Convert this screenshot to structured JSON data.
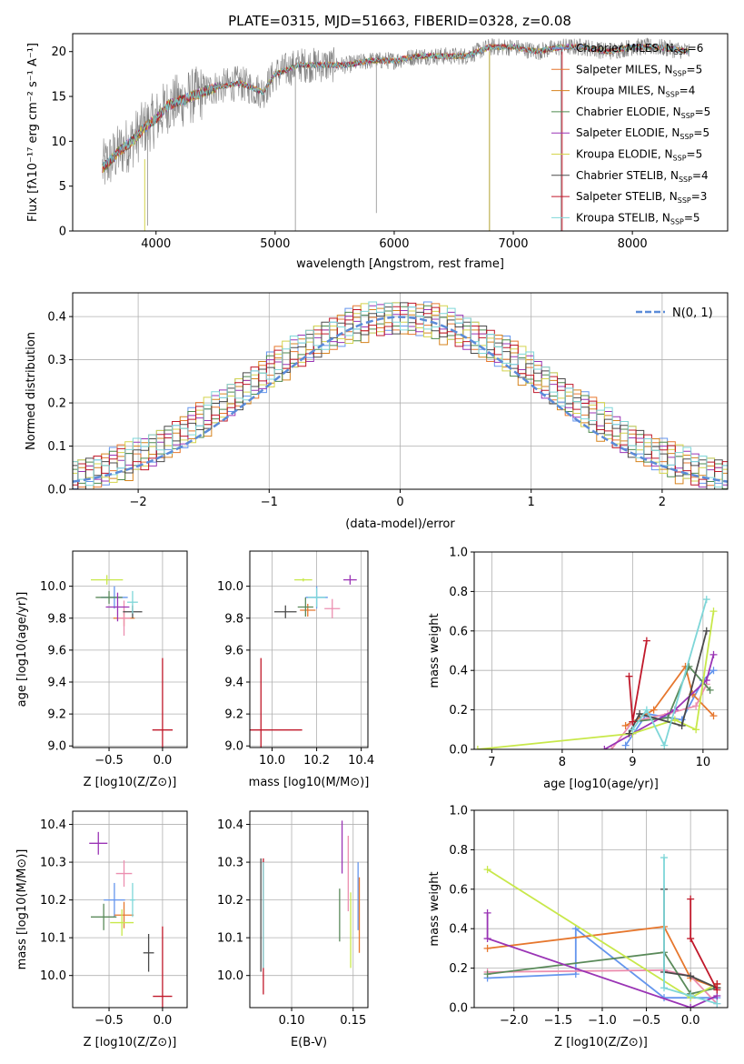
{
  "colors": {
    "series": [
      "#6495ed",
      "#e6772e",
      "#d6831d",
      "#4e8a4e",
      "#9a34b5",
      "#d4d44c",
      "#4a4a4a",
      "#c0182a",
      "#7ed6d8"
    ],
    "spec": [
      "#6495ed",
      "#e6772e",
      "#d6831d",
      "#4e8a4e",
      "#9a34b5",
      "#d4d44c",
      "#4a4a4a",
      "#c0182a",
      "#7ed6d8"
    ],
    "pdf": [
      "#6495ed",
      "#e6772e",
      "#d6831d",
      "#4e8a4e",
      "#9a34b5",
      "#d4d44c",
      "#4a4a4a",
      "#c0182a",
      "#7ed6d8"
    ],
    "pts": [
      "#6495ed",
      "#e6772e",
      "#ec8fb0",
      "#5a8a5a",
      "#9a34b5",
      "#c8e84a",
      "#4a4a4a",
      "#c0182a",
      "#7ed6d8"
    ],
    "normal": "#5b8bd8",
    "grid": "#b0b0b0"
  },
  "chart_data": [
    {
      "type": "line",
      "title": "PLATE=0315, MJD=51663, FIBERID=0328, z=0.08",
      "xlabel": "wavelength [Angstrom, rest frame]",
      "ylabel": "Flux [fλ10⁻¹⁷ erg cm⁻² s⁻¹ A⁻¹]",
      "xlim": [
        3300,
        8800
      ],
      "ylim": [
        0,
        22
      ],
      "xticks": [
        "4000",
        "5000",
        "6000",
        "7000",
        "8000"
      ],
      "yticks": [
        "0",
        "5",
        "10",
        "15",
        "20"
      ],
      "legend": "top-right",
      "series_names": [
        "Chabrier MILES, N_SSP=6",
        "Salpeter MILES, N_SSP=5",
        "Kroupa MILES, N_SSP=4",
        "Chabrier ELODIE, N_SSP=5",
        "Salpeter ELODIE, N_SSP=5",
        "Kroupa ELODIE, N_SSP=5",
        "Chabrier STELIB, N_SSP=4",
        "Salpeter STELIB, N_SSP=3",
        "Kroupa STELIB, N_SSP=5"
      ],
      "continuum": [
        [
          3550,
          7
        ],
        [
          3700,
          9
        ],
        [
          3800,
          10
        ],
        [
          3900,
          11.5
        ],
        [
          4000,
          12.5
        ],
        [
          4100,
          14
        ],
        [
          4300,
          15
        ],
        [
          4500,
          16
        ],
        [
          4700,
          16.5
        ],
        [
          4900,
          15.5
        ],
        [
          5000,
          17.5
        ],
        [
          5200,
          18.5
        ],
        [
          5400,
          18.5
        ],
        [
          5600,
          18.5
        ],
        [
          5800,
          19
        ],
        [
          6000,
          19
        ],
        [
          6200,
          19.5
        ],
        [
          6400,
          19.5
        ],
        [
          6600,
          19.5
        ],
        [
          6800,
          20.5
        ],
        [
          7000,
          20.5
        ],
        [
          7200,
          20
        ],
        [
          7400,
          20.5
        ],
        [
          7600,
          20.5
        ],
        [
          7800,
          20
        ],
        [
          8000,
          20.5
        ],
        [
          8200,
          20.5
        ],
        [
          8500,
          20
        ]
      ]
    },
    {
      "type": "bar",
      "xlabel": "(data-model)/error",
      "ylabel": "Normed distribution",
      "xlim": [
        -2.5,
        2.5
      ],
      "ylim": [
        0,
        0.455
      ],
      "xticks": [
        "−2",
        "−1",
        "0",
        "1",
        "2"
      ],
      "yticks": [
        "0.0",
        "0.1",
        "0.2",
        "0.3",
        "0.4"
      ],
      "legend_label": "N(0, 1)",
      "bin_width": 0.1,
      "hist_base": [
        0.024,
        0.028,
        0.032,
        0.036,
        0.041,
        0.046,
        0.052,
        0.058,
        0.065,
        0.073,
        0.081,
        0.09,
        0.1,
        0.11,
        0.121,
        0.132,
        0.144,
        0.156,
        0.168,
        0.181,
        0.194,
        0.207,
        0.22,
        0.234,
        0.247,
        0.26,
        0.273,
        0.286,
        0.298,
        0.31,
        0.321,
        0.332,
        0.342,
        0.351,
        0.36,
        0.367,
        0.374,
        0.38,
        0.385,
        0.389,
        0.392,
        0.395,
        0.396,
        0.396,
        0.395,
        0.392,
        0.389,
        0.385,
        0.38,
        0.374,
        0.367,
        0.36,
        0.351,
        0.342,
        0.332,
        0.321,
        0.31,
        0.298,
        0.286,
        0.273,
        0.26,
        0.247,
        0.234,
        0.22,
        0.207,
        0.194,
        0.181,
        0.168,
        0.156,
        0.144,
        0.132,
        0.121,
        0.11,
        0.1,
        0.09,
        0.081,
        0.073,
        0.065,
        0.058,
        0.052,
        0.046,
        0.041,
        0.036,
        0.032,
        0.028,
        0.024
      ],
      "noise": [
        [
          0.02,
          -0.03,
          0.04,
          -0.02,
          0.03,
          -0.04,
          0.05,
          -0.01,
          0.02,
          -0.03
        ],
        [
          -0.02,
          0.04,
          -0.03,
          0.02,
          -0.04,
          0.03,
          -0.01,
          0.05,
          -0.02,
          0.01
        ],
        [
          0.03,
          -0.01,
          0.02,
          -0.04,
          0.01,
          0.04,
          -0.03,
          0.02,
          -0.05,
          0.03
        ],
        [
          -0.01,
          0.02,
          -0.02,
          0.03,
          -0.03,
          0.01,
          0.04,
          -0.04,
          0.02,
          -0.02
        ],
        [
          0.04,
          -0.04,
          0.01,
          0.02,
          -0.02,
          -0.03,
          0.03,
          0.01,
          -0.01,
          0.04
        ],
        [
          -0.03,
          0.01,
          0.04,
          -0.01,
          0.02,
          -0.02,
          -0.04,
          0.03,
          0.05,
          -0.03
        ],
        [
          0.01,
          0.03,
          -0.04,
          0.04,
          -0.01,
          0.02,
          0.01,
          -0.02,
          -0.03,
          0.02
        ],
        [
          -0.04,
          -0.02,
          0.03,
          0.01,
          0.04,
          -0.01,
          0.02,
          0.04,
          -0.02,
          -0.01
        ],
        [
          0.02,
          0.04,
          -0.01,
          -0.03,
          0.03,
          0.01,
          -0.02,
          -0.01,
          0.03,
          0.05
        ]
      ]
    },
    {
      "type": "scatter",
      "xlabel": "Z [log10(Z/Z⊙)]",
      "ylabel": "age [log10(age/yr)]",
      "xlim": [
        -0.84,
        0.23
      ],
      "ylim": [
        8.99,
        10.22
      ],
      "xticks": [
        "−0.5",
        "0.0"
      ],
      "yticks": [
        "9.0",
        "9.2",
        "9.4",
        "9.6",
        "9.8",
        "10.0"
      ],
      "points": [
        [
          -0.45,
          9.93,
          0.25,
          0.14
        ],
        [
          -0.36,
          9.8,
          0.2,
          0.1
        ],
        [
          -0.36,
          9.8,
          0.12,
          0.22
        ],
        [
          -0.5,
          9.93,
          0.25,
          0.08
        ],
        [
          -0.42,
          9.87,
          0.22,
          0.18
        ],
        [
          -0.52,
          10.04,
          0.3,
          0.06
        ],
        [
          -0.28,
          9.84,
          0.18,
          0.08
        ],
        [
          0.0,
          9.1,
          0.19,
          0.9
        ],
        [
          -0.28,
          9.9,
          0.1,
          0.14
        ]
      ]
    },
    {
      "type": "scatter",
      "xlabel": "mass [log10(M/M⊙)]",
      "ylabel": "",
      "xlim": [
        9.9,
        10.43
      ],
      "ylim": [
        8.99,
        10.22
      ],
      "xticks": [
        "10.0",
        "10.2",
        "10.4"
      ],
      "yticks": [
        "9.0",
        "9.2",
        "9.4",
        "9.6",
        "9.8",
        "10.0"
      ],
      "points": [
        [
          10.2,
          9.93,
          0.1,
          0.14
        ],
        [
          10.16,
          9.85,
          0.07,
          0.08
        ],
        [
          10.27,
          9.86,
          0.07,
          0.12
        ],
        [
          10.15,
          9.87,
          0.07,
          0.12
        ],
        [
          10.35,
          10.04,
          0.06,
          0.06
        ],
        [
          10.14,
          10.04,
          0.08,
          0.02
        ],
        [
          10.06,
          9.84,
          0.1,
          0.08
        ],
        [
          9.95,
          9.1,
          0.37,
          0.9
        ],
        [
          10.2,
          9.93,
          0.08,
          0.12
        ]
      ]
    },
    {
      "type": "line",
      "xlabel": "age [log10(age/yr)]",
      "ylabel": "mass weight",
      "xlim": [
        6.75,
        10.35
      ],
      "ylim": [
        0,
        1
      ],
      "xticks": [
        "7",
        "8",
        "9",
        "10"
      ],
      "yticks": [
        "0.0",
        "0.2",
        "0.4",
        "0.6",
        "0.8",
        "1.0"
      ],
      "series": [
        [
          [
            8.9,
            0.02
          ],
          [
            9.2,
            0.18
          ],
          [
            9.7,
            0.15
          ],
          [
            10.0,
            0.35
          ],
          [
            10.15,
            0.4
          ]
        ],
        [
          [
            8.9,
            0.12
          ],
          [
            9.3,
            0.2
          ],
          [
            9.75,
            0.42
          ],
          [
            9.85,
            0.28
          ],
          [
            10.15,
            0.17
          ]
        ],
        [
          [
            8.7,
            0.0
          ],
          [
            9.0,
            0.14
          ],
          [
            9.5,
            0.18
          ],
          [
            9.9,
            0.22
          ],
          [
            10.05,
            0.33
          ]
        ],
        [
          [
            9.0,
            0.14
          ],
          [
            9.5,
            0.16
          ],
          [
            9.8,
            0.42
          ],
          [
            10.1,
            0.3
          ]
        ],
        [
          [
            8.6,
            0.0
          ],
          [
            9.0,
            0.08
          ],
          [
            9.6,
            0.2
          ],
          [
            10.05,
            0.35
          ],
          [
            10.15,
            0.48
          ]
        ],
        [
          [
            6.8,
            0.0
          ],
          [
            9.0,
            0.08
          ],
          [
            9.6,
            0.15
          ],
          [
            9.9,
            0.1
          ],
          [
            10.15,
            0.7
          ]
        ],
        [
          [
            8.95,
            0.08
          ],
          [
            9.1,
            0.18
          ],
          [
            9.7,
            0.12
          ],
          [
            10.05,
            0.6
          ]
        ],
        [
          [
            8.95,
            0.37
          ],
          [
            9.0,
            0.14
          ],
          [
            9.2,
            0.55
          ]
        ],
        [
          [
            9.0,
            0.1
          ],
          [
            9.2,
            0.2
          ],
          [
            9.45,
            0.02
          ],
          [
            10.05,
            0.76
          ]
        ]
      ]
    },
    {
      "type": "scatter",
      "xlabel": "Z [log10(Z/Z⊙)]",
      "ylabel": "mass [log10(M/M⊙)]",
      "xlim": [
        -0.84,
        0.23
      ],
      "ylim": [
        9.915,
        10.435
      ],
      "xticks": [
        "−0.5",
        "0.0"
      ],
      "yticks": [
        "10.0",
        "10.1",
        "10.2",
        "10.3",
        "10.4"
      ],
      "points": [
        [
          -0.45,
          10.2,
          0.2,
          0.09
        ],
        [
          -0.36,
          10.16,
          0.18,
          0.07
        ],
        [
          -0.36,
          10.27,
          0.15,
          0.07
        ],
        [
          -0.55,
          10.155,
          0.24,
          0.07
        ],
        [
          -0.6,
          10.35,
          0.17,
          0.06
        ],
        [
          -0.38,
          10.14,
          0.22,
          0.07
        ],
        [
          -0.13,
          10.06,
          0.1,
          0.1
        ],
        [
          0.0,
          9.945,
          0.18,
          0.37
        ],
        [
          -0.28,
          10.2,
          0.05,
          0.09
        ]
      ]
    },
    {
      "type": "scatter",
      "xlabel": "E(B-V)",
      "ylabel": "",
      "xlim": [
        0.066,
        0.162
      ],
      "ylim": [
        9.915,
        10.435
      ],
      "xticks": [
        "0.10",
        "0.15"
      ],
      "yticks": [
        "10.0",
        "10.1",
        "10.2",
        "10.3",
        "10.4"
      ],
      "segments": [
        [
          0.154,
          10.21,
          0.09
        ],
        [
          0.155,
          10.16,
          0.1
        ],
        [
          0.146,
          10.27,
          0.1
        ],
        [
          0.139,
          10.16,
          0.07
        ],
        [
          0.141,
          10.34,
          0.07
        ],
        [
          0.148,
          10.12,
          0.1
        ],
        [
          0.075,
          10.16,
          0.15
        ],
        [
          0.077,
          10.13,
          0.18
        ],
        [
          0.077,
          10.16,
          0.14
        ]
      ]
    },
    {
      "type": "line",
      "xlabel": "Z [log10(Z/Z⊙)]",
      "ylabel": "mass weight",
      "xlim": [
        -2.45,
        0.42
      ],
      "ylim": [
        0,
        1
      ],
      "xticks": [
        "−2.0",
        "−1.5",
        "−1.0",
        "−0.5",
        "0.0"
      ],
      "yticks": [
        "0.0",
        "0.2",
        "0.4",
        "0.6",
        "0.8",
        "1.0"
      ],
      "series": [
        [
          [
            -2.3,
            0.15
          ],
          [
            -1.3,
            0.17
          ],
          [
            -1.3,
            0.4
          ],
          [
            -0.3,
            0.05
          ],
          [
            0.3,
            0.05
          ]
        ],
        [
          [
            -2.3,
            0.3
          ],
          [
            -0.3,
            0.41
          ],
          [
            0.0,
            0.15
          ],
          [
            0.3,
            0.1
          ]
        ],
        [
          [
            -2.3,
            0.18
          ],
          [
            -0.3,
            0.19
          ],
          [
            0.0,
            0.16
          ],
          [
            0.3,
            0.02
          ]
        ],
        [
          [
            -2.3,
            0.17
          ],
          [
            -0.3,
            0.28
          ],
          [
            0.0,
            0.07
          ],
          [
            0.3,
            0.1
          ]
        ],
        [
          [
            -2.3,
            0.48
          ],
          [
            -2.3,
            0.35
          ],
          [
            0.0,
            0.0
          ],
          [
            0.3,
            0.06
          ]
        ],
        [
          [
            -2.3,
            0.7
          ],
          [
            0.0,
            0.05
          ],
          [
            0.3,
            0.12
          ]
        ],
        [
          [
            -0.3,
            0.6
          ],
          [
            -0.3,
            0.18
          ],
          [
            0.0,
            0.16
          ],
          [
            0.3,
            0.1
          ]
        ],
        [
          [
            0.0,
            0.55
          ],
          [
            0.0,
            0.35
          ],
          [
            0.3,
            0.09
          ],
          [
            0.3,
            0.12
          ]
        ],
        [
          [
            -0.3,
            0.76
          ],
          [
            -0.3,
            0.1
          ],
          [
            0.0,
            0.06
          ],
          [
            0.3,
            0.02
          ]
        ]
      ]
    }
  ]
}
